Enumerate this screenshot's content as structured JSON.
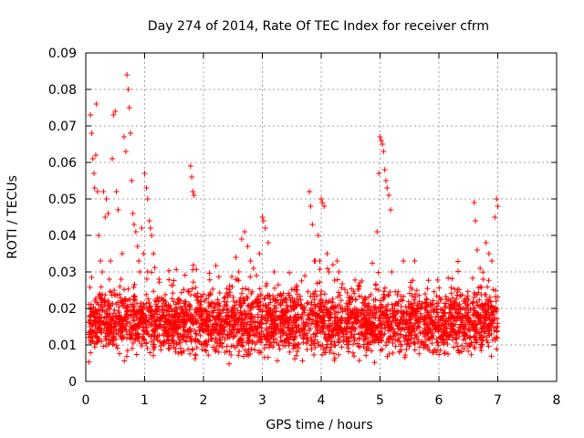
{
  "chart_data": {
    "type": "scatter",
    "title": "Day 274 of 2014, Rate Of TEC Index for receiver cfrm",
    "xlabel": "GPS time / hours",
    "ylabel": "ROTI / TECUs",
    "xlim": [
      0,
      8
    ],
    "ylim": [
      0,
      0.09
    ],
    "xticks": [
      0,
      1,
      2,
      3,
      4,
      5,
      6,
      7,
      8
    ],
    "yticks": [
      0,
      0.01,
      0.02,
      0.03,
      0.04,
      0.05,
      0.06,
      0.07,
      0.08,
      0.09
    ],
    "xtick_labels": [
      "0",
      "1",
      "2",
      "3",
      "4",
      "5",
      "6",
      "7",
      "8"
    ],
    "ytick_labels": [
      "0",
      "0.01",
      "0.02",
      "0.03",
      "0.04",
      "0.05",
      "0.06",
      "0.07",
      "0.08",
      "0.09"
    ],
    "grid": true,
    "marker": "+",
    "color": "#ff0000",
    "series": [
      {
        "name": "ROTI",
        "description": "dense scatter of ROTI values, mostly 0.005-0.03 TECU/min from 0.05h to 7.0h",
        "x": [
          0.05,
          0.08,
          0.1,
          0.12,
          0.14,
          0.15,
          0.17,
          0.18,
          0.2,
          0.22,
          0.25,
          0.28,
          0.3,
          0.33,
          0.35,
          0.38,
          0.4,
          0.42,
          0.45,
          0.47,
          0.5,
          0.52,
          0.55,
          0.58,
          0.6,
          0.62,
          0.65,
          0.68,
          0.7,
          0.72,
          0.74,
          0.76,
          0.78,
          0.8,
          0.82,
          0.85,
          0.88,
          0.9,
          0.92,
          0.95,
          0.98,
          1.0,
          1.03,
          1.05,
          1.08,
          1.1,
          1.12,
          1.15,
          1.78,
          1.8,
          1.82,
          1.84,
          2.55,
          2.6,
          2.65,
          2.7,
          2.75,
          2.8,
          2.85,
          2.9,
          2.95,
          3.0,
          3.02,
          3.05,
          3.1,
          3.2,
          3.8,
          3.82,
          3.85,
          3.9,
          3.95,
          4.0,
          4.02,
          4.05,
          4.1,
          4.2,
          4.3,
          4.95,
          4.98,
          5.0,
          5.02,
          5.04,
          5.06,
          5.08,
          5.1,
          5.12,
          5.15,
          5.18,
          5.2,
          6.6,
          6.62,
          6.65,
          6.7,
          6.75,
          6.8,
          6.85,
          6.9,
          6.95,
          6.98,
          7.0
        ],
        "y": [
          0.012,
          0.073,
          0.068,
          0.061,
          0.057,
          0.053,
          0.062,
          0.076,
          0.052,
          0.04,
          0.033,
          0.03,
          0.052,
          0.045,
          0.05,
          0.046,
          0.028,
          0.033,
          0.061,
          0.073,
          0.074,
          0.052,
          0.047,
          0.026,
          0.028,
          0.035,
          0.067,
          0.063,
          0.084,
          0.08,
          0.075,
          0.068,
          0.055,
          0.046,
          0.043,
          0.041,
          0.037,
          0.033,
          0.03,
          0.042,
          0.035,
          0.057,
          0.053,
          0.05,
          0.044,
          0.042,
          0.04,
          0.035,
          0.059,
          0.056,
          0.052,
          0.051,
          0.034,
          0.03,
          0.039,
          0.041,
          0.037,
          0.033,
          0.031,
          0.029,
          0.035,
          0.045,
          0.044,
          0.042,
          0.038,
          0.03,
          0.052,
          0.048,
          0.043,
          0.033,
          0.04,
          0.05,
          0.049,
          0.048,
          0.035,
          0.032,
          0.03,
          0.041,
          0.057,
          0.067,
          0.066,
          0.065,
          0.063,
          0.058,
          0.055,
          0.053,
          0.051,
          0.047,
          0.03,
          0.049,
          0.044,
          0.036,
          0.031,
          0.028,
          0.038,
          0.035,
          0.033,
          0.045,
          0.05,
          0.048
        ]
      }
    ],
    "dense_band": {
      "x_start": 0.05,
      "x_end": 7.0,
      "y_low": 0.004,
      "y_high": 0.025
    }
  }
}
